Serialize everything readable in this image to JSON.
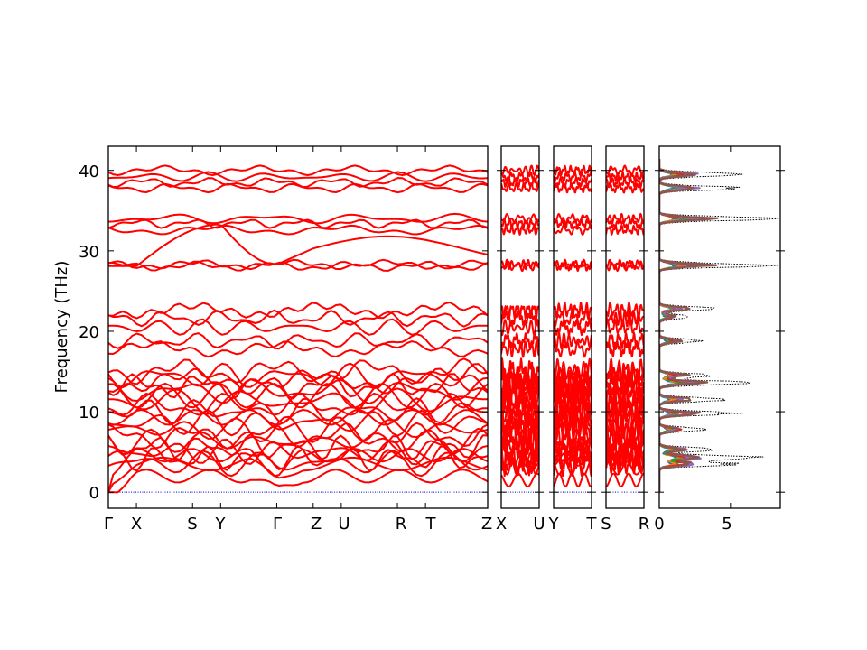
{
  "chart_data": {
    "type": "line",
    "ylabel": "Frequency (THz)",
    "ylim": [
      -2,
      43
    ],
    "yticks": [
      0,
      10,
      20,
      30,
      40
    ],
    "panels": [
      {
        "path": "Γ-X-S-Y-Γ-Z-U-R-T-Z",
        "labels": [
          "Γ",
          "X",
          "S",
          "Y",
          "Γ",
          "Z",
          "U",
          "R",
          "T",
          "Z"
        ],
        "positions": [
          0,
          0.074,
          0.222,
          0.296,
          0.444,
          0.54,
          0.614,
          0.762,
          0.836,
          1.0
        ]
      },
      {
        "path": "X-U",
        "labels": [
          "X",
          "U"
        ],
        "positions": [
          0,
          1
        ]
      },
      {
        "path": "Y-T",
        "labels": [
          "Y",
          "T"
        ],
        "positions": [
          0,
          1
        ]
      },
      {
        "path": "S-R",
        "labels": [
          "S",
          "R"
        ],
        "positions": [
          0,
          1
        ]
      }
    ],
    "band_color": "#ff0000",
    "zero_line_color": "#0000cc",
    "band_levels": [
      0.0,
      1.5,
      2.6,
      3.6,
      4.2,
      5.0,
      5.6,
      6.3,
      7.0,
      7.8,
      8.6,
      9.3,
      10.1,
      10.7,
      11.3,
      12.0,
      12.6,
      13.2,
      13.8,
      14.4,
      15.0,
      17.8,
      18.8,
      20.5,
      21.6,
      22.6,
      28.1,
      28.3,
      32.6,
      33.4,
      34.0,
      37.8,
      38.5,
      39.2,
      40.0
    ],
    "dos": {
      "xlabel_ticks": [
        0,
        5
      ],
      "xlim": [
        0,
        8.5
      ],
      "total_peaks": [
        {
          "f": 3.5,
          "d": 6.0
        },
        {
          "f": 4.3,
          "d": 8.0
        },
        {
          "f": 5.3,
          "d": 4.5
        },
        {
          "f": 7.8,
          "d": 4.0
        },
        {
          "f": 9.8,
          "d": 6.0
        },
        {
          "f": 11.5,
          "d": 5.5
        },
        {
          "f": 13.6,
          "d": 7.0
        },
        {
          "f": 14.5,
          "d": 4.5
        },
        {
          "f": 18.8,
          "d": 3.5
        },
        {
          "f": 21.8,
          "d": 2.8
        },
        {
          "f": 22.8,
          "d": 4.5
        },
        {
          "f": 28.2,
          "d": 8.5
        },
        {
          "f": 34.0,
          "d": 8.5
        },
        {
          "f": 37.8,
          "d": 6.5
        },
        {
          "f": 39.5,
          "d": 6.5
        }
      ],
      "partial_colors": [
        "#1f77b4",
        "#ff7f0e",
        "#2ca02c",
        "#d62728",
        "#9467bd",
        "#8c564b"
      ]
    }
  },
  "axes": {
    "x_ticks_main": [
      "Γ",
      "X",
      "S",
      "Y",
      "Γ",
      "Z",
      "U",
      "R",
      "T",
      "Z"
    ],
    "x_ticks_p2": [
      "X",
      "U"
    ],
    "x_ticks_p3": [
      "Y",
      "T"
    ],
    "x_ticks_p4": [
      "S",
      "R"
    ],
    "y_ticks": [
      "0",
      "10",
      "20",
      "30",
      "40"
    ],
    "dos_ticks": [
      "0",
      "5"
    ]
  }
}
